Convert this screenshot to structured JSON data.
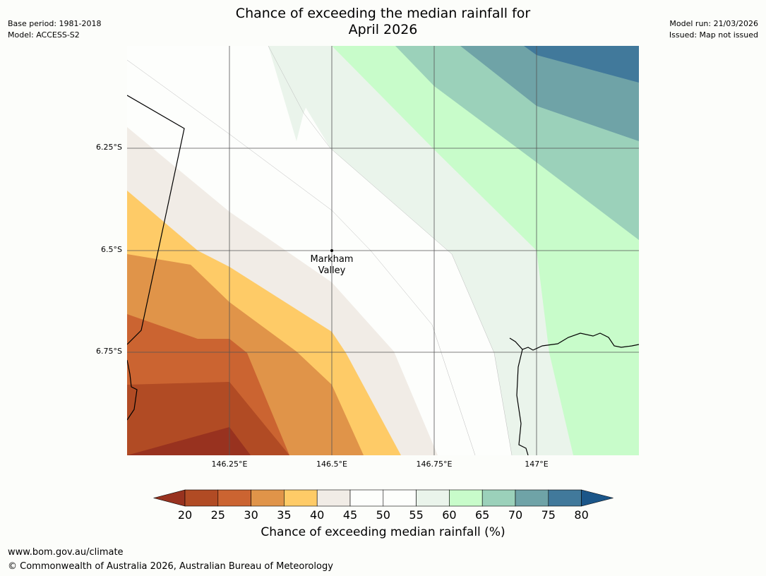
{
  "title": {
    "line1": "Chance of exceeding the median rainfall for",
    "line2": "April 2026"
  },
  "meta_left": {
    "base_period": "Base period: 1981-2018",
    "model": "Model: ACCESS-S2"
  },
  "meta_right": {
    "model_run": "Model run: 21/03/2026",
    "issued": "Issued: Map not issued"
  },
  "map": {
    "lat_labels": [
      "6.25°S",
      "6.5°S",
      "6.75°S"
    ],
    "lon_labels": [
      "146.25°E",
      "146.5°E",
      "146.75°E",
      "147°E"
    ],
    "place": {
      "line1": "Markham",
      "line2": "Valley"
    }
  },
  "legend": {
    "ticks": [
      "20",
      "25",
      "30",
      "35",
      "40",
      "45",
      "50",
      "55",
      "60",
      "65",
      "70",
      "75",
      "80"
    ],
    "title": "Chance of exceeding median rainfall (%)",
    "colors": [
      "#98321f",
      "#b14b24",
      "#cb6431",
      "#e09449",
      "#fecb67",
      "#f1ece6",
      "#fdfefc",
      "#fdfefc",
      "#eaf4eb",
      "#c8fcca",
      "#9bd1ba",
      "#6fa3a7",
      "#41799b",
      "#1b5689"
    ]
  },
  "footer": {
    "url": "www.bom.gov.au/climate",
    "copyright": "© Commonwealth of Australia 2026, Australian Bureau of Meteorology"
  }
}
